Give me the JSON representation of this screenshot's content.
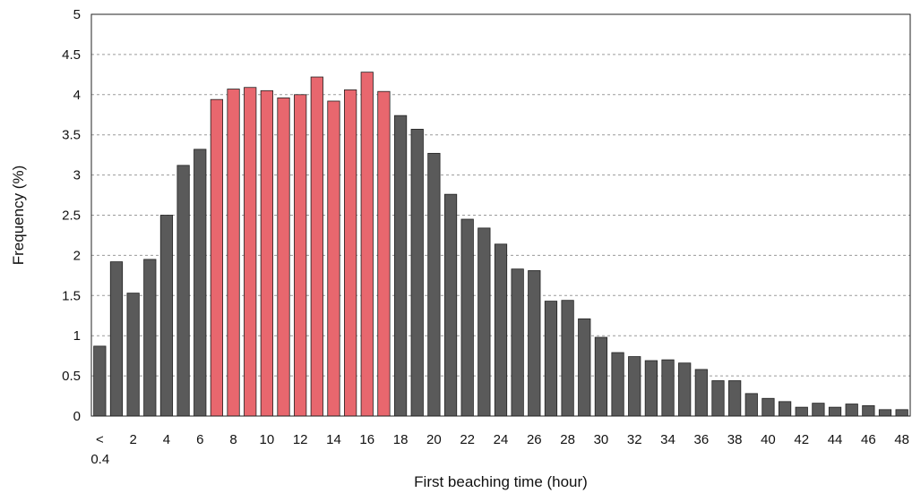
{
  "chart_data": {
    "type": "bar",
    "title": "",
    "xlabel": "First beaching time (hour)",
    "ylabel": "Frequency  (%)",
    "ylim": [
      0,
      5
    ],
    "y_ticks": [
      "0",
      "0.5",
      "1",
      "1.5",
      "2",
      "2.5",
      "3",
      "3.5",
      "4",
      "4.5",
      "5"
    ],
    "x_tick_labels": [
      {
        "index": 0,
        "lines": [
          "<",
          "0.4"
        ]
      },
      {
        "index": 2,
        "lines": [
          "2"
        ]
      },
      {
        "index": 4,
        "lines": [
          "4"
        ]
      },
      {
        "index": 6,
        "lines": [
          "6"
        ]
      },
      {
        "index": 8,
        "lines": [
          "8"
        ]
      },
      {
        "index": 10,
        "lines": [
          "10"
        ]
      },
      {
        "index": 12,
        "lines": [
          "12"
        ]
      },
      {
        "index": 14,
        "lines": [
          "14"
        ]
      },
      {
        "index": 16,
        "lines": [
          "16"
        ]
      },
      {
        "index": 18,
        "lines": [
          "18"
        ]
      },
      {
        "index": 20,
        "lines": [
          "20"
        ]
      },
      {
        "index": 22,
        "lines": [
          "22"
        ]
      },
      {
        "index": 24,
        "lines": [
          "24"
        ]
      },
      {
        "index": 26,
        "lines": [
          "26"
        ]
      },
      {
        "index": 28,
        "lines": [
          "28"
        ]
      },
      {
        "index": 30,
        "lines": [
          "30"
        ]
      },
      {
        "index": 32,
        "lines": [
          "32"
        ]
      },
      {
        "index": 34,
        "lines": [
          "34"
        ]
      },
      {
        "index": 36,
        "lines": [
          "36"
        ]
      },
      {
        "index": 38,
        "lines": [
          "38"
        ]
      },
      {
        "index": 40,
        "lines": [
          "40"
        ]
      },
      {
        "index": 42,
        "lines": [
          "42"
        ]
      },
      {
        "index": 44,
        "lines": [
          "44"
        ]
      },
      {
        "index": 46,
        "lines": [
          "46"
        ]
      },
      {
        "index": 48,
        "lines": [
          "48"
        ]
      }
    ],
    "values": [
      0.87,
      1.92,
      1.53,
      1.95,
      2.5,
      3.12,
      3.32,
      3.94,
      4.07,
      4.09,
      4.05,
      3.96,
      4.0,
      4.22,
      3.92,
      4.06,
      4.28,
      4.04,
      3.74,
      3.57,
      3.27,
      2.76,
      2.45,
      2.34,
      2.14,
      1.83,
      1.81,
      1.43,
      1.44,
      1.21,
      0.98,
      0.79,
      0.74,
      0.69,
      0.7,
      0.66,
      0.58,
      0.44,
      0.44,
      0.28,
      0.22,
      0.18,
      0.11,
      0.16,
      0.11,
      0.15,
      0.13,
      0.08,
      0.08
    ],
    "highlight_range": [
      7,
      17
    ],
    "colors": {
      "bar_default": "#5a5a5a",
      "bar_highlight": "#e8676e",
      "bar_stroke": "#222222",
      "grid": "#9a9a9a"
    },
    "grid": true,
    "grid_style": "dashed"
  }
}
